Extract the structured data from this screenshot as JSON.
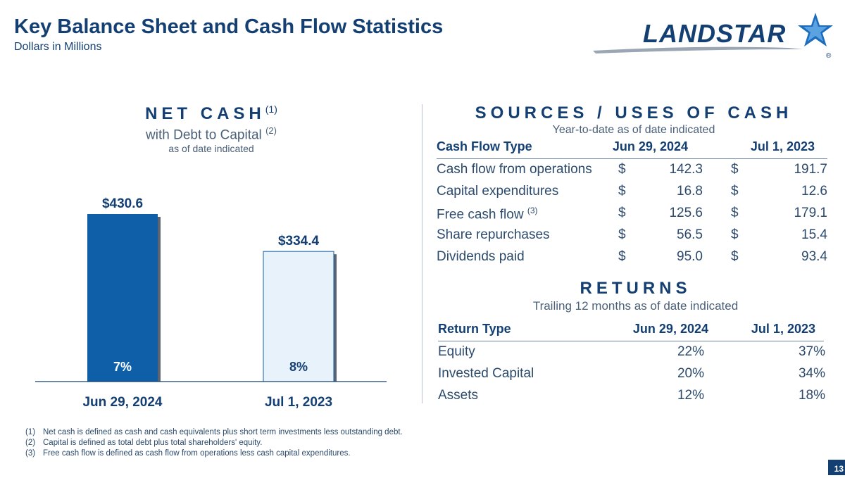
{
  "header": {
    "title": "Key Balance Sheet and Cash Flow Statistics",
    "subtitle": "Dollars in Millions",
    "logo_text": "LANDSTAR",
    "logo_mark": "®"
  },
  "net_cash": {
    "heading": "NET CASH",
    "heading_note": "(1)",
    "subheading": "with Debt to Capital",
    "subheading_note": "(2)",
    "note": "as of date indicated"
  },
  "chart_data": {
    "type": "bar",
    "title": "NET CASH",
    "categories": [
      "Jun 29, 2024",
      "Jul 1, 2023"
    ],
    "values": [
      430.6,
      334.4
    ],
    "value_labels": [
      "$430.6",
      "$334.4"
    ],
    "debt_to_capital": [
      "7%",
      "8%"
    ],
    "ylim": [
      0,
      430.6
    ],
    "colors": [
      "#0f5fa8",
      "#e8f2fb"
    ],
    "legend": "none",
    "grid": false
  },
  "sources_uses": {
    "heading": "SOURCES / USES OF CASH",
    "note": "Year-to-date as of date indicated",
    "columns": [
      "Cash Flow Type",
      "Jun 29, 2024",
      "Jul 1, 2023"
    ],
    "rows": [
      {
        "label": "Cash flow from operations",
        "note": "",
        "cur": "$",
        "v1": "142.3",
        "v2": "191.7"
      },
      {
        "label": "Capital expenditures",
        "note": "",
        "cur": "$",
        "v1": "16.8",
        "v2": "12.6"
      },
      {
        "label": "Free cash flow",
        "note": "(3)",
        "cur": "$",
        "v1": "125.6",
        "v2": "179.1"
      },
      {
        "label": "Share repurchases",
        "note": "",
        "cur": "$",
        "v1": "56.5",
        "v2": "15.4"
      },
      {
        "label": "Dividends paid",
        "note": "",
        "cur": "$",
        "v1": "95.0",
        "v2": "93.4"
      }
    ]
  },
  "returns": {
    "heading": "RETURNS",
    "note": "Trailing 12 months as of date indicated",
    "columns": [
      "Return Type",
      "Jun 29, 2024",
      "Jul 1, 2023"
    ],
    "rows": [
      {
        "label": "Equity",
        "v1": "22%",
        "v2": "37%"
      },
      {
        "label": "Invested Capital",
        "v1": "20%",
        "v2": "34%"
      },
      {
        "label": "Assets",
        "v1": "12%",
        "v2": "18%"
      }
    ]
  },
  "footnotes": [
    {
      "num": "(1)",
      "text": "Net cash is defined as cash and cash equivalents plus short term investments less outstanding debt."
    },
    {
      "num": "(2)",
      "text": "Capital is defined as total debt plus total shareholders' equity."
    },
    {
      "num": "(3)",
      "text": "Free cash flow is defined as cash flow from operations less cash capital expenditures."
    }
  ],
  "page_number": "13"
}
